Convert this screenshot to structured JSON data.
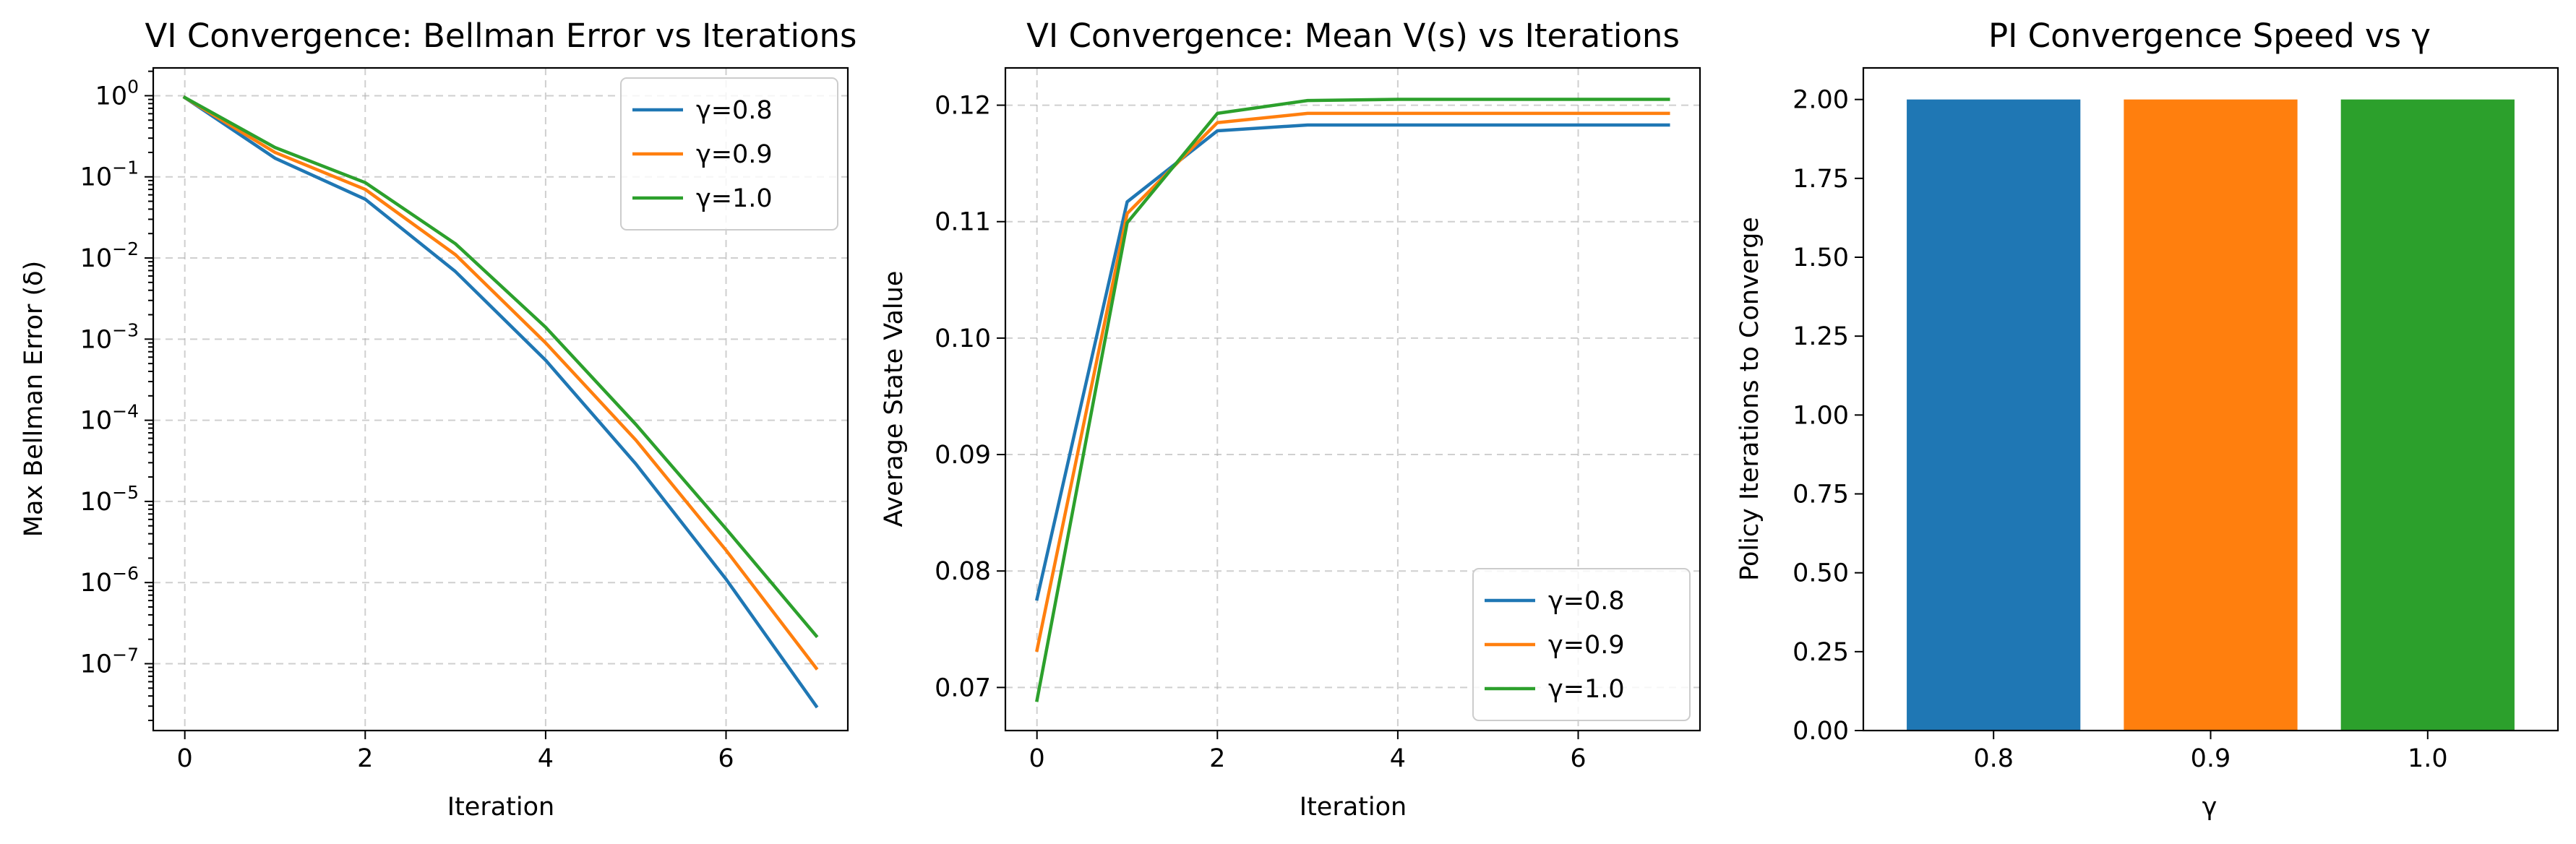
{
  "colors": {
    "c1": "#1f77b4",
    "c2": "#ff7f0e",
    "c3": "#2ca02c"
  },
  "chart_data": [
    {
      "type": "line",
      "title": "VI Convergence: Bellman Error vs Iterations",
      "xlabel": "Iteration",
      "ylabel": "Max Bellman Error (δ)",
      "yscale": "log",
      "xlim": [
        -0.35,
        7.35
      ],
      "ylim": [
        1.5e-08,
        2.2
      ],
      "grid": true,
      "legend_position": "top-right",
      "x_ticks": [
        0,
        2,
        4,
        6
      ],
      "y_ticks": [
        {
          "value": 1,
          "base": "10",
          "exp": "0"
        },
        {
          "value": 0.1,
          "base": "10",
          "exp": "−1"
        },
        {
          "value": 0.01,
          "base": "10",
          "exp": "−2"
        },
        {
          "value": 0.001,
          "base": "10",
          "exp": "−3"
        },
        {
          "value": 0.0001,
          "base": "10",
          "exp": "−4"
        },
        {
          "value": 1e-05,
          "base": "10",
          "exp": "−5"
        },
        {
          "value": 1e-06,
          "base": "10",
          "exp": "−6"
        },
        {
          "value": 1e-07,
          "base": "10",
          "exp": "−7"
        }
      ],
      "x": [
        0,
        1,
        2,
        3,
        4,
        5,
        6,
        7
      ],
      "series": [
        {
          "name": "γ=0.8",
          "color": "#1f77b4",
          "values": [
            0.95,
            0.17,
            0.053,
            0.0068,
            0.00055,
            2.9e-05,
            1.1e-06,
            3e-08
          ]
        },
        {
          "name": "γ=0.9",
          "color": "#ff7f0e",
          "values": [
            0.95,
            0.2,
            0.07,
            0.011,
            0.0009,
            5.7e-05,
            2.5e-06,
            8.8e-08
          ]
        },
        {
          "name": "γ=1.0",
          "color": "#2ca02c",
          "values": [
            0.95,
            0.23,
            0.085,
            0.015,
            0.0014,
            8.9e-05,
            4.6e-06,
            2.2e-07
          ]
        }
      ]
    },
    {
      "type": "line",
      "title": "VI Convergence: Mean V(s) vs Iterations",
      "xlabel": "Iteration",
      "ylabel": "Average State Value",
      "xlim": [
        -0.35,
        7.35
      ],
      "ylim": [
        0.0663,
        0.1232
      ],
      "grid": true,
      "legend_position": "bottom-right",
      "x_ticks": [
        0,
        2,
        4,
        6
      ],
      "y_ticks": [
        0.07,
        0.08,
        0.09,
        0.1,
        0.11,
        0.12
      ],
      "y_tick_labels": [
        "0.07",
        "0.08",
        "0.09",
        "0.10",
        "0.11",
        "0.12"
      ],
      "x": [
        0,
        1,
        2,
        3,
        4,
        5,
        6,
        7
      ],
      "series": [
        {
          "name": "γ=0.8",
          "color": "#1f77b4",
          "values": [
            0.0776,
            0.1117,
            0.1178,
            0.1183,
            0.1183,
            0.1183,
            0.1183,
            0.1183
          ]
        },
        {
          "name": "γ=0.9",
          "color": "#ff7f0e",
          "values": [
            0.0732,
            0.1107,
            0.1185,
            0.1193,
            0.1193,
            0.1193,
            0.1193,
            0.1193
          ]
        },
        {
          "name": "γ=1.0",
          "color": "#2ca02c",
          "values": [
            0.0689,
            0.1099,
            0.1193,
            0.1204,
            0.1205,
            0.1205,
            0.1205,
            0.1205
          ]
        }
      ]
    },
    {
      "type": "bar",
      "title": "PI Convergence Speed vs γ",
      "xlabel": "γ",
      "ylabel": "Policy Iterations to Converge",
      "ylim": [
        0,
        2.1
      ],
      "grid": false,
      "categories": [
        "0.8",
        "0.9",
        "1.0"
      ],
      "values": [
        2.0,
        2.0,
        2.0
      ],
      "colors": [
        "#1f77b4",
        "#ff7f0e",
        "#2ca02c"
      ],
      "y_ticks": [
        0,
        0.25,
        0.5,
        0.75,
        1.0,
        1.25,
        1.5,
        1.75,
        2.0
      ],
      "y_tick_labels": [
        "0.00",
        "0.25",
        "0.50",
        "0.75",
        "1.00",
        "1.25",
        "1.50",
        "1.75",
        "2.00"
      ]
    }
  ]
}
